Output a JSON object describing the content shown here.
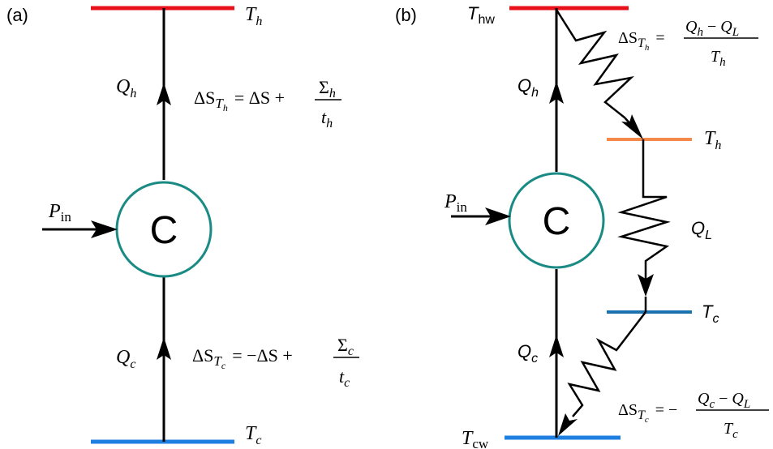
{
  "panel_a": {
    "label": "(a)",
    "hot_bath": {
      "symbol": "T",
      "sub": "h",
      "color": "#e8111b"
    },
    "cold_bath": {
      "symbol": "T",
      "sub": "c",
      "color": "#1e7fe0"
    },
    "device": {
      "label": "C",
      "color": "#1a8a84"
    },
    "heat_hot": {
      "symbol": "Q",
      "sub": "h"
    },
    "heat_cold": {
      "symbol": "Q",
      "sub": "c"
    },
    "power": {
      "symbol": "P",
      "sub": "in"
    },
    "entropy_hot": {
      "lhs": "ΔS",
      "lhs_sub": "T",
      "lhs_subsub": "h",
      "rhs": "= ΔS +",
      "num": "Σ",
      "num_sub": "h",
      "den": "t",
      "den_sub": "h"
    },
    "entropy_cold": {
      "lhs": "ΔS",
      "lhs_sub": "T",
      "lhs_subsub": "c",
      "rhs": "= −ΔS +",
      "num": "Σ",
      "num_sub": "c",
      "den": "t",
      "den_sub": "c"
    }
  },
  "panel_b": {
    "label": "(b)",
    "hot_wall": {
      "symbol": "T",
      "sub": "hw",
      "color": "#e8111b"
    },
    "hot_bath": {
      "symbol": "T",
      "sub": "h",
      "color": "#f5894a"
    },
    "cold_bath": {
      "symbol": "T",
      "sub": "c",
      "color": "#1a72b0"
    },
    "cold_wall": {
      "symbol": "T",
      "sub": "cw",
      "color": "#1e7fe0"
    },
    "device": {
      "label": "C",
      "color": "#1a8a84"
    },
    "heat_hot": {
      "symbol": "Q",
      "sub": "h"
    },
    "heat_cold": {
      "symbol": "Q",
      "sub": "c"
    },
    "heat_leak": {
      "symbol": "Q",
      "sub": "L"
    },
    "power": {
      "symbol": "P",
      "sub": "in"
    },
    "entropy_hot": {
      "lhs": "ΔS",
      "lhs_sub": "T",
      "lhs_subsub": "h",
      "eq": "=",
      "num_a": "Q",
      "num_a_sub": "h",
      "minus": "−",
      "num_b": "Q",
      "num_b_sub": "L",
      "den": "T",
      "den_sub": "h"
    },
    "entropy_cold": {
      "lhs": "ΔS",
      "lhs_sub": "T",
      "lhs_subsub": "c",
      "eq": "= −",
      "num_a": "Q",
      "num_a_sub": "c",
      "minus": "−",
      "num_b": "Q",
      "num_b_sub": "L",
      "den": "T",
      "den_sub": "c"
    }
  }
}
